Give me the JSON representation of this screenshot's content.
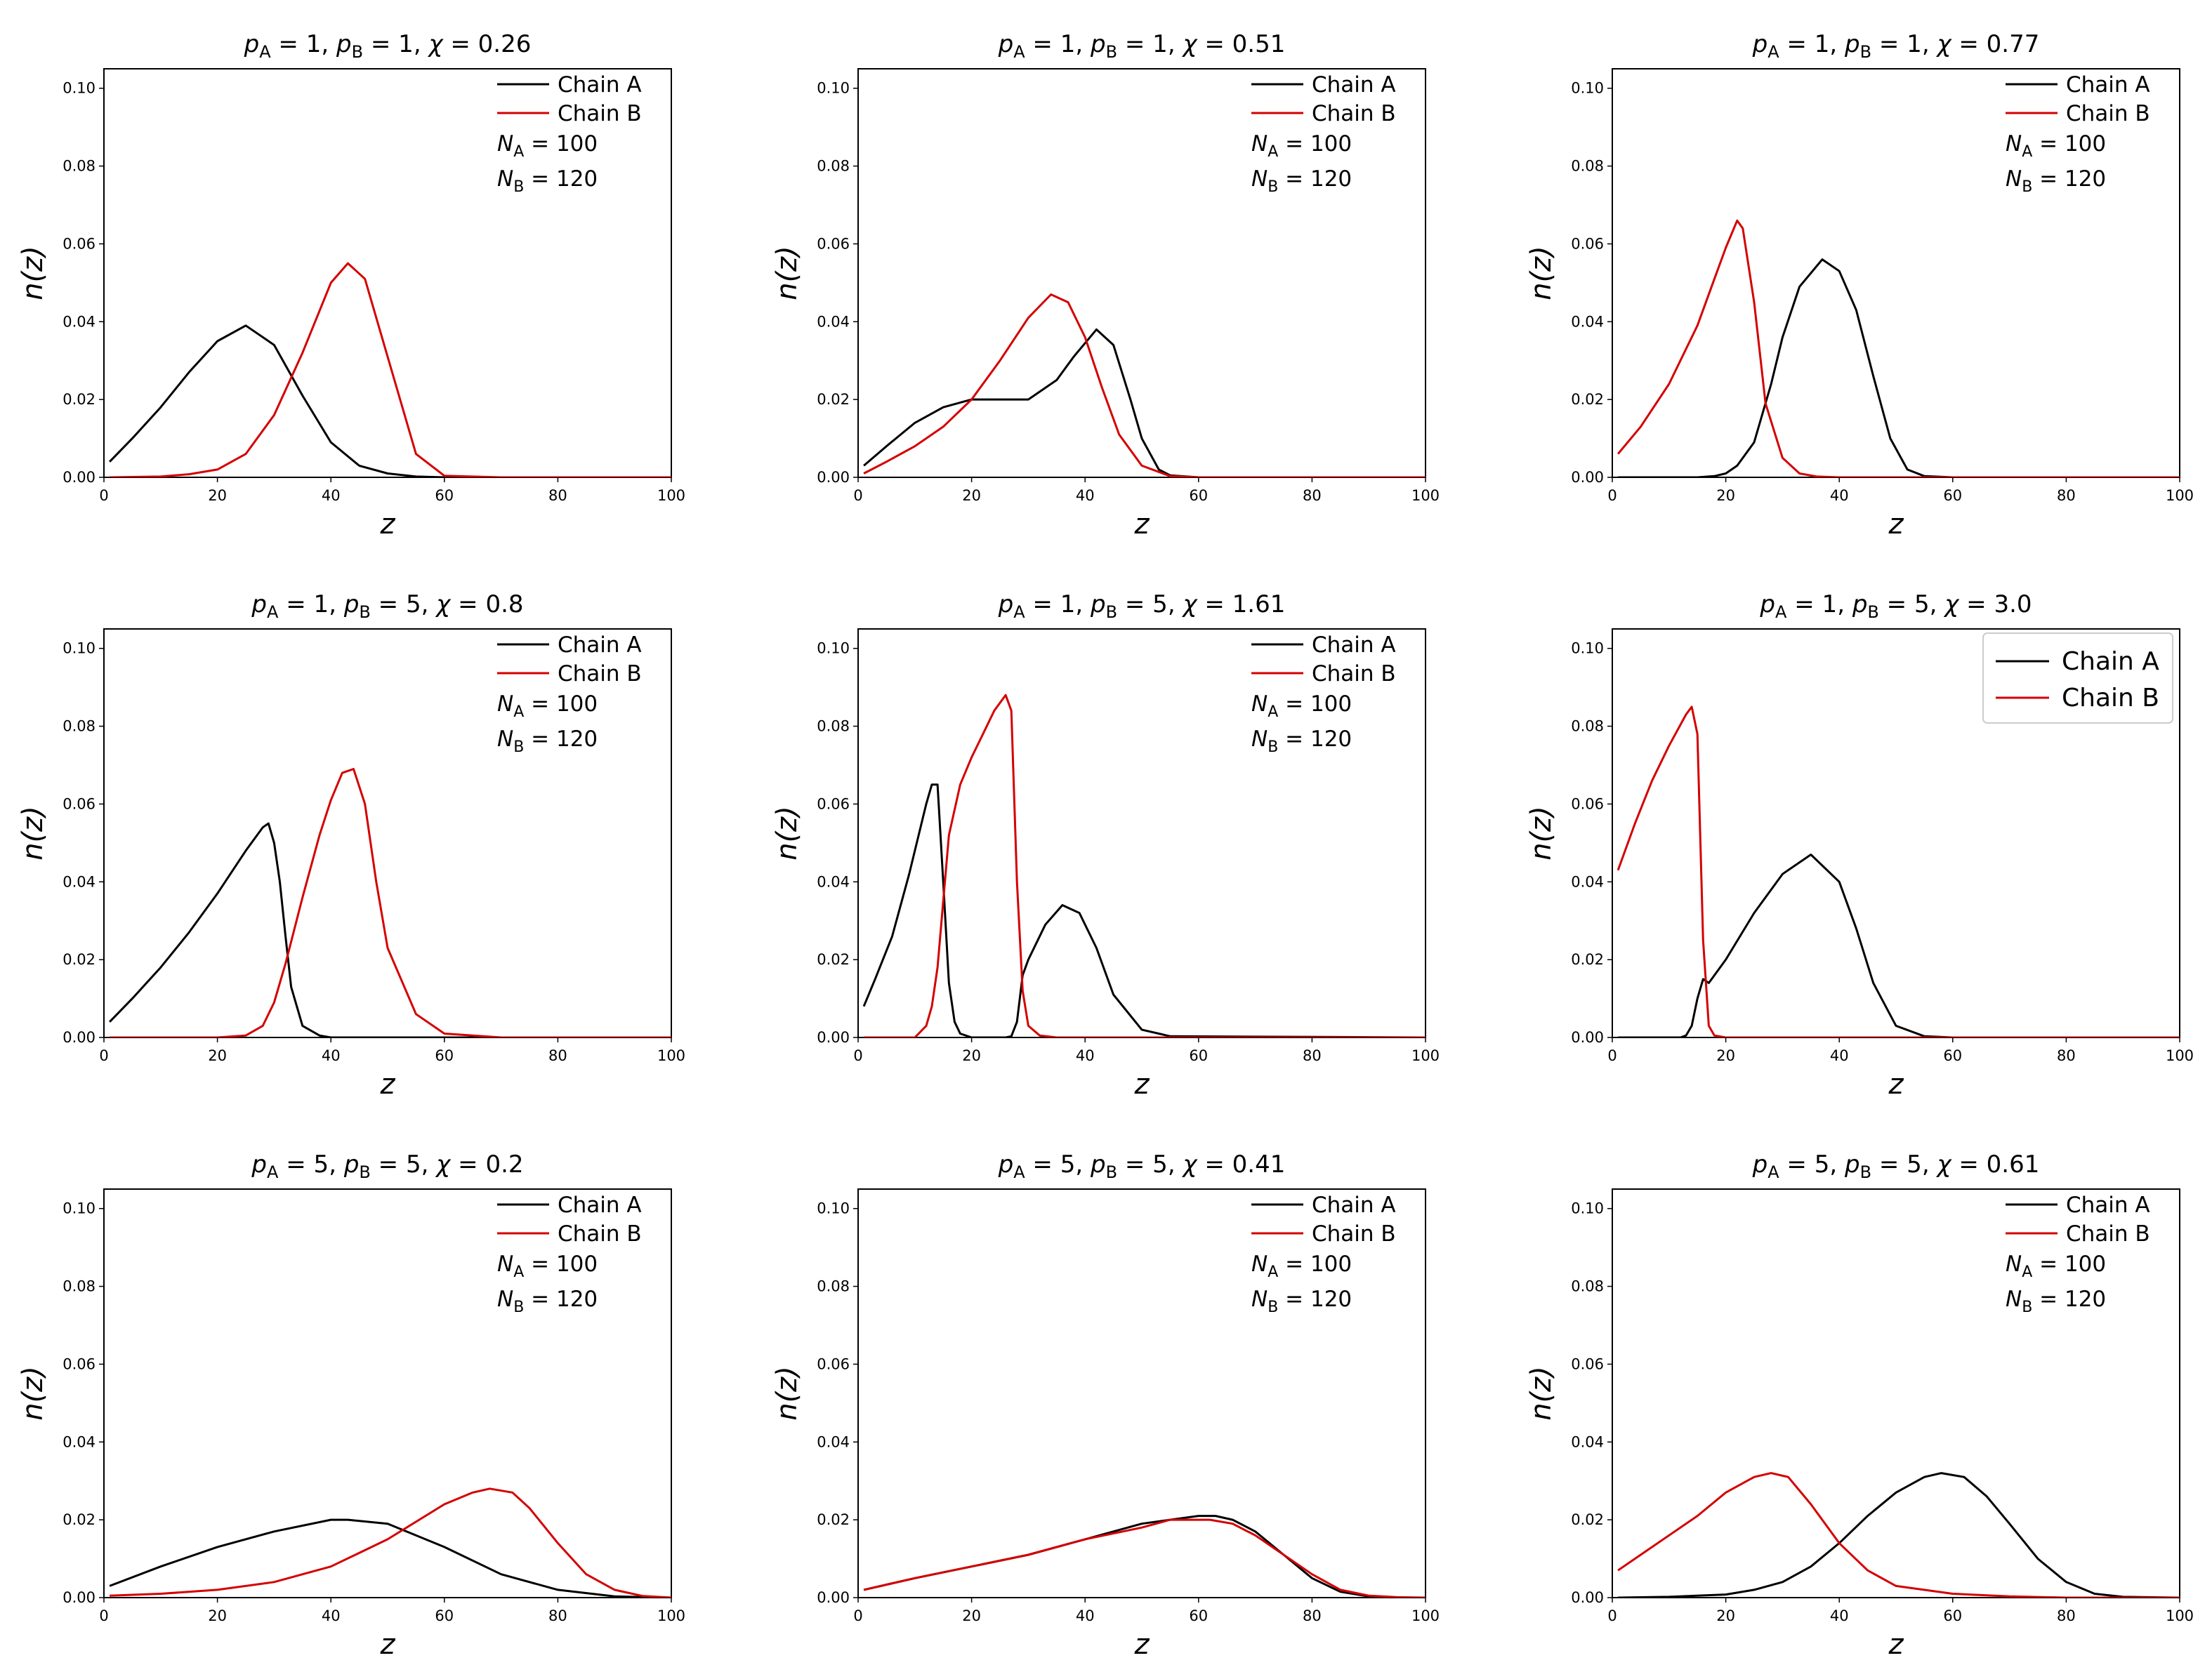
{
  "figure": {
    "common": {
      "xlabel": "z",
      "ylabel": "n(z)",
      "x_ticks": [
        "0",
        "20",
        "40",
        "60",
        "80",
        "100"
      ],
      "y_ticks": [
        "0.00",
        "0.02",
        "0.04",
        "0.06",
        "0.08",
        "0.10"
      ],
      "legend_a": "Chain A",
      "legend_b": "Chain B",
      "na_label": "N",
      "na_sub": "A",
      "na_value": " = 100",
      "nb_label": "N",
      "nb_sub": "B",
      "nb_value": " = 120",
      "color_a": "#000000",
      "color_b": "#d40000"
    }
  },
  "chart_data": [
    {
      "type": "line",
      "title": "p_A = 1, p_B = 1, χ = 0.26",
      "title_parts": {
        "pa": "1",
        "pb": "1",
        "chi": "0.26"
      },
      "xlabel": "z",
      "ylabel": "n(z)",
      "xlim": [
        0,
        100
      ],
      "ylim": [
        0,
        0.105
      ],
      "legend": "top-right",
      "annot": {
        "NA": 100,
        "NB": 120
      },
      "series": [
        {
          "name": "Chain A",
          "color": "#000000",
          "x": [
            1,
            5,
            10,
            15,
            20,
            25,
            30,
            35,
            40,
            45,
            50,
            55,
            60,
            70,
            100
          ],
          "y": [
            0.004,
            0.01,
            0.018,
            0.027,
            0.035,
            0.039,
            0.034,
            0.021,
            0.009,
            0.003,
            0.001,
            0.0002,
            0,
            0,
            0
          ]
        },
        {
          "name": "Chain B",
          "color": "#d40000",
          "x": [
            1,
            10,
            15,
            20,
            25,
            30,
            35,
            40,
            43,
            46,
            50,
            55,
            60,
            70,
            100
          ],
          "y": [
            0,
            0.0002,
            0.0008,
            0.002,
            0.006,
            0.016,
            0.032,
            0.05,
            0.055,
            0.051,
            0.031,
            0.006,
            0.0004,
            0,
            0
          ]
        }
      ]
    },
    {
      "type": "line",
      "title": "p_A = 1, p_B = 1, χ = 0.51",
      "title_parts": {
        "pa": "1",
        "pb": "1",
        "chi": "0.51"
      },
      "xlabel": "z",
      "ylabel": "n(z)",
      "xlim": [
        0,
        100
      ],
      "ylim": [
        0,
        0.105
      ],
      "legend": "top-right",
      "annot": {
        "NA": 100,
        "NB": 120
      },
      "series": [
        {
          "name": "Chain A",
          "color": "#000000",
          "x": [
            1,
            5,
            10,
            15,
            20,
            25,
            30,
            35,
            38,
            42,
            45,
            48,
            50,
            53,
            55,
            60,
            100
          ],
          "y": [
            0.003,
            0.008,
            0.014,
            0.018,
            0.02,
            0.02,
            0.02,
            0.025,
            0.031,
            0.038,
            0.034,
            0.02,
            0.01,
            0.002,
            0.0005,
            0,
            0
          ]
        },
        {
          "name": "Chain B",
          "color": "#d40000",
          "x": [
            1,
            5,
            10,
            15,
            20,
            25,
            30,
            34,
            37,
            40,
            43,
            46,
            50,
            55,
            60,
            100
          ],
          "y": [
            0.001,
            0.004,
            0.008,
            0.013,
            0.02,
            0.03,
            0.041,
            0.047,
            0.045,
            0.036,
            0.023,
            0.011,
            0.003,
            0.0003,
            0,
            0
          ]
        }
      ]
    },
    {
      "type": "line",
      "title": "p_A = 1, p_B = 1, χ = 0.77",
      "title_parts": {
        "pa": "1",
        "pb": "1",
        "chi": "0.77"
      },
      "xlabel": "z",
      "ylabel": "n(z)",
      "xlim": [
        0,
        100
      ],
      "ylim": [
        0,
        0.105
      ],
      "legend": "top-right",
      "annot": {
        "NA": 100,
        "NB": 120
      },
      "series": [
        {
          "name": "Chain A",
          "color": "#000000",
          "x": [
            1,
            15,
            18,
            20,
            22,
            25,
            28,
            30,
            33,
            37,
            40,
            43,
            46,
            49,
            52,
            55,
            60,
            100
          ],
          "y": [
            0,
            0,
            0.0003,
            0.001,
            0.003,
            0.009,
            0.024,
            0.036,
            0.049,
            0.056,
            0.053,
            0.043,
            0.026,
            0.01,
            0.002,
            0.0003,
            0,
            0
          ]
        },
        {
          "name": "Chain B",
          "color": "#d40000",
          "x": [
            1,
            5,
            10,
            15,
            18,
            20,
            22,
            23,
            25,
            27,
            30,
            33,
            36,
            40,
            50,
            100
          ],
          "y": [
            0.006,
            0.013,
            0.024,
            0.039,
            0.051,
            0.059,
            0.066,
            0.064,
            0.045,
            0.019,
            0.005,
            0.001,
            0.0002,
            0,
            0,
            0
          ]
        }
      ]
    },
    {
      "type": "line",
      "title": "p_A = 1, p_B = 5, χ = 0.8",
      "title_parts": {
        "pa": "1",
        "pb": "5",
        "chi": "0.8"
      },
      "xlabel": "z",
      "ylabel": "n(z)",
      "xlim": [
        0,
        100
      ],
      "ylim": [
        0,
        0.105
      ],
      "legend": "top-right",
      "annot": {
        "NA": 100,
        "NB": 120
      },
      "series": [
        {
          "name": "Chain A",
          "color": "#000000",
          "x": [
            1,
            5,
            10,
            15,
            20,
            25,
            28,
            29,
            30,
            31,
            32,
            33,
            35,
            38,
            40,
            50,
            100
          ],
          "y": [
            0.004,
            0.01,
            0.018,
            0.027,
            0.037,
            0.048,
            0.054,
            0.055,
            0.05,
            0.04,
            0.026,
            0.013,
            0.003,
            0.0005,
            0,
            0,
            0
          ]
        },
        {
          "name": "Chain B",
          "color": "#d40000",
          "x": [
            1,
            20,
            25,
            28,
            30,
            32,
            35,
            38,
            40,
            42,
            44,
            46,
            48,
            50,
            55,
            60,
            70,
            100
          ],
          "y": [
            0,
            0,
            0.0005,
            0.003,
            0.009,
            0.019,
            0.036,
            0.052,
            0.061,
            0.068,
            0.069,
            0.06,
            0.04,
            0.023,
            0.006,
            0.001,
            0,
            0
          ]
        }
      ]
    },
    {
      "type": "line",
      "title": "p_A = 1, p_B = 5, χ = 1.61",
      "title_parts": {
        "pa": "1",
        "pb": "5",
        "chi": "1.61"
      },
      "xlabel": "z",
      "ylabel": "n(z)",
      "xlim": [
        0,
        100
      ],
      "ylim": [
        0,
        0.105
      ],
      "legend": "top-right",
      "annot": {
        "NA": 100,
        "NB": 120
      },
      "series": [
        {
          "name": "Chain A",
          "color": "#000000",
          "x": [
            1,
            3,
            6,
            9,
            12,
            13,
            14,
            15,
            16,
            17,
            18,
            20,
            26,
            27,
            28,
            29,
            30,
            33,
            36,
            39,
            42,
            45,
            50,
            55,
            100
          ],
          "y": [
            0.008,
            0.015,
            0.026,
            0.042,
            0.06,
            0.065,
            0.065,
            0.04,
            0.014,
            0.004,
            0.001,
            0,
            0,
            0.0003,
            0.004,
            0.016,
            0.02,
            0.029,
            0.034,
            0.032,
            0.023,
            0.011,
            0.002,
            0.0003,
            0
          ]
        },
        {
          "name": "Chain B",
          "color": "#d40000",
          "x": [
            1,
            10,
            12,
            13,
            14,
            15,
            16,
            18,
            20,
            22,
            24,
            26,
            27,
            28,
            29,
            30,
            32,
            35,
            100
          ],
          "y": [
            0,
            0,
            0.003,
            0.008,
            0.018,
            0.035,
            0.052,
            0.065,
            0.072,
            0.078,
            0.084,
            0.088,
            0.084,
            0.04,
            0.012,
            0.003,
            0.0005,
            0,
            0
          ]
        }
      ]
    },
    {
      "type": "line",
      "title": "p_A = 1, p_B = 5, χ = 3.0",
      "title_parts": {
        "pa": "1",
        "pb": "5",
        "chi": "3.0"
      },
      "xlabel": "z",
      "ylabel": "n(z)",
      "xlim": [
        0,
        100
      ],
      "ylim": [
        0,
        0.105
      ],
      "legend": "top-right",
      "annot": null,
      "series": [
        {
          "name": "Chain A",
          "color": "#000000",
          "x": [
            1,
            12,
            13,
            14,
            15,
            16,
            17,
            20,
            25,
            30,
            35,
            40,
            43,
            46,
            50,
            55,
            60,
            100
          ],
          "y": [
            0,
            0,
            0.0005,
            0.003,
            0.01,
            0.015,
            0.014,
            0.02,
            0.032,
            0.042,
            0.047,
            0.04,
            0.028,
            0.014,
            0.003,
            0.0003,
            0,
            0
          ]
        },
        {
          "name": "Chain B",
          "color": "#d40000",
          "x": [
            1,
            4,
            7,
            10,
            13,
            14,
            15,
            16,
            17,
            18,
            20,
            100
          ],
          "y": [
            0.043,
            0.055,
            0.066,
            0.075,
            0.083,
            0.085,
            0.078,
            0.025,
            0.003,
            0.0005,
            0,
            0
          ]
        }
      ]
    },
    {
      "type": "line",
      "title": "p_A = 5, p_B = 5, χ = 0.2",
      "title_parts": {
        "pa": "5",
        "pb": "5",
        "chi": "0.2"
      },
      "xlabel": "z",
      "ylabel": "n(z)",
      "xlim": [
        0,
        100
      ],
      "ylim": [
        0,
        0.105
      ],
      "legend": "top-right",
      "annot": {
        "NA": 100,
        "NB": 120
      },
      "series": [
        {
          "name": "Chain A",
          "color": "#000000",
          "x": [
            1,
            10,
            20,
            30,
            40,
            43,
            50,
            60,
            70,
            80,
            90,
            100
          ],
          "y": [
            0.003,
            0.008,
            0.013,
            0.017,
            0.02,
            0.02,
            0.019,
            0.013,
            0.006,
            0.002,
            0.0003,
            0
          ]
        },
        {
          "name": "Chain B",
          "color": "#d40000",
          "x": [
            1,
            10,
            20,
            30,
            40,
            50,
            60,
            65,
            68,
            72,
            75,
            80,
            85,
            90,
            95,
            100
          ],
          "y": [
            0.0005,
            0.001,
            0.002,
            0.004,
            0.008,
            0.015,
            0.024,
            0.027,
            0.028,
            0.027,
            0.023,
            0.014,
            0.006,
            0.002,
            0.0004,
            0
          ]
        }
      ]
    },
    {
      "type": "line",
      "title": "p_A = 5, p_B = 5, χ = 0.41",
      "title_parts": {
        "pa": "5",
        "pb": "5",
        "chi": "0.41"
      },
      "xlabel": "z",
      "ylabel": "n(z)",
      "xlim": [
        0,
        100
      ],
      "ylim": [
        0,
        0.105
      ],
      "legend": "top-right",
      "annot": {
        "NA": 100,
        "NB": 120
      },
      "series": [
        {
          "name": "Chain A",
          "color": "#000000",
          "x": [
            1,
            10,
            20,
            30,
            40,
            50,
            55,
            60,
            63,
            66,
            70,
            75,
            80,
            85,
            90,
            95,
            100
          ],
          "y": [
            0.002,
            0.005,
            0.008,
            0.011,
            0.015,
            0.019,
            0.02,
            0.021,
            0.021,
            0.02,
            0.017,
            0.011,
            0.005,
            0.0015,
            0.0003,
            0,
            0
          ]
        },
        {
          "name": "Chain B",
          "color": "#d40000",
          "x": [
            1,
            10,
            20,
            30,
            40,
            50,
            55,
            58,
            62,
            66,
            70,
            75,
            80,
            85,
            90,
            95,
            100
          ],
          "y": [
            0.002,
            0.005,
            0.008,
            0.011,
            0.015,
            0.018,
            0.02,
            0.02,
            0.02,
            0.019,
            0.016,
            0.011,
            0.006,
            0.002,
            0.0005,
            0.0001,
            0
          ]
        }
      ]
    },
    {
      "type": "line",
      "title": "p_A = 5, p_B = 5, χ = 0.61",
      "title_parts": {
        "pa": "5",
        "pb": "5",
        "chi": "0.61"
      },
      "xlabel": "z",
      "ylabel": "n(z)",
      "xlim": [
        0,
        100
      ],
      "ylim": [
        0,
        0.105
      ],
      "legend": "top-right",
      "annot": {
        "NA": 100,
        "NB": 120
      },
      "series": [
        {
          "name": "Chain A",
          "color": "#000000",
          "x": [
            1,
            10,
            20,
            25,
            30,
            35,
            40,
            45,
            50,
            55,
            58,
            62,
            66,
            70,
            75,
            80,
            85,
            90,
            100
          ],
          "y": [
            0,
            0.0002,
            0.0008,
            0.002,
            0.004,
            0.008,
            0.014,
            0.021,
            0.027,
            0.031,
            0.032,
            0.031,
            0.026,
            0.019,
            0.01,
            0.004,
            0.001,
            0.0002,
            0
          ]
        },
        {
          "name": "Chain B",
          "color": "#d40000",
          "x": [
            1,
            5,
            10,
            15,
            20,
            25,
            28,
            31,
            35,
            40,
            45,
            50,
            60,
            70,
            80,
            100
          ],
          "y": [
            0.007,
            0.011,
            0.016,
            0.021,
            0.027,
            0.031,
            0.032,
            0.031,
            0.024,
            0.014,
            0.007,
            0.003,
            0.001,
            0.0003,
            0,
            0
          ]
        }
      ]
    }
  ]
}
